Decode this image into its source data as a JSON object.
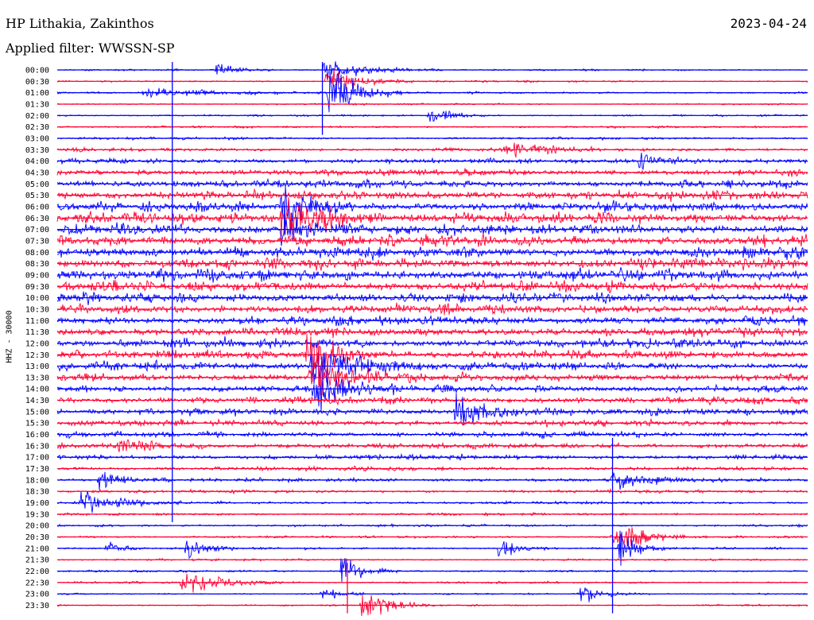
{
  "header": {
    "station": "HP Lithakia, Zakinthos",
    "filter": "Applied filter: WWSSN-SP",
    "date": "2023-04-24",
    "channel": "HHZ - 30000"
  },
  "chart_data": {
    "type": "line",
    "title": "HP Lithakia, Zakinthos",
    "subtitle": "Applied filter: WWSSN-SP",
    "ylabel": "HHZ - 30000",
    "xlabel": "",
    "date": "2023-04-24",
    "grid": false,
    "colors": {
      "even_rows": "#0000ff",
      "odd_rows": "#ff0033"
    },
    "rows": [
      {
        "label": "00:00",
        "noise": 0.6
      },
      {
        "label": "00:30",
        "noise": 0.6
      },
      {
        "label": "01:00",
        "noise": 0.7
      },
      {
        "label": "01:30",
        "noise": 0.6
      },
      {
        "label": "02:00",
        "noise": 0.7
      },
      {
        "label": "02:30",
        "noise": 0.7
      },
      {
        "label": "03:00",
        "noise": 0.9
      },
      {
        "label": "03:30",
        "noise": 1.3
      },
      {
        "label": "04:00",
        "noise": 1.8
      },
      {
        "label": "04:30",
        "noise": 2.3
      },
      {
        "label": "05:00",
        "noise": 2.8
      },
      {
        "label": "05:30",
        "noise": 3.2
      },
      {
        "label": "06:00",
        "noise": 3.5
      },
      {
        "label": "06:30",
        "noise": 3.8
      },
      {
        "label": "07:00",
        "noise": 4.0
      },
      {
        "label": "07:30",
        "noise": 4.0
      },
      {
        "label": "08:00",
        "noise": 4.0
      },
      {
        "label": "08:30",
        "noise": 4.0
      },
      {
        "label": "09:00",
        "noise": 4.0
      },
      {
        "label": "09:30",
        "noise": 3.9
      },
      {
        "label": "10:00",
        "noise": 3.8
      },
      {
        "label": "10:30",
        "noise": 3.6
      },
      {
        "label": "11:00",
        "noise": 3.4
      },
      {
        "label": "11:30",
        "noise": 3.2
      },
      {
        "label": "12:00",
        "noise": 3.2
      },
      {
        "label": "12:30",
        "noise": 3.1
      },
      {
        "label": "13:00",
        "noise": 3.0
      },
      {
        "label": "13:30",
        "noise": 2.9
      },
      {
        "label": "14:00",
        "noise": 2.8
      },
      {
        "label": "14:30",
        "noise": 2.6
      },
      {
        "label": "15:00",
        "noise": 2.4
      },
      {
        "label": "15:30",
        "noise": 2.2
      },
      {
        "label": "16:00",
        "noise": 2.1
      },
      {
        "label": "16:30",
        "noise": 2.0
      },
      {
        "label": "17:00",
        "noise": 1.8
      },
      {
        "label": "17:30",
        "noise": 1.5
      },
      {
        "label": "18:00",
        "noise": 1.3
      },
      {
        "label": "18:30",
        "noise": 1.1
      },
      {
        "label": "19:00",
        "noise": 1.0
      },
      {
        "label": "19:30",
        "noise": 0.9
      },
      {
        "label": "20:00",
        "noise": 0.9
      },
      {
        "label": "20:30",
        "noise": 0.8
      },
      {
        "label": "21:00",
        "noise": 0.8
      },
      {
        "label": "21:30",
        "noise": 0.7
      },
      {
        "label": "22:00",
        "noise": 0.7
      },
      {
        "label": "22:30",
        "noise": 0.7
      },
      {
        "label": "23:00",
        "noise": 0.6
      },
      {
        "label": "23:30",
        "noise": 0.6
      }
    ],
    "events": [
      {
        "row": 0,
        "minute": 6.3,
        "amp": 6,
        "dur": 0.8
      },
      {
        "row": 0,
        "minute": 10.6,
        "amp": 10,
        "dur": 1.6
      },
      {
        "row": 1,
        "minute": 10.7,
        "amp": 12,
        "dur": 1.2
      },
      {
        "row": 2,
        "minute": 3.4,
        "amp": 4,
        "dur": 3.0
      },
      {
        "row": 2,
        "minute": 10.8,
        "amp": 28,
        "dur": 1.0
      },
      {
        "row": 4,
        "minute": 14.7,
        "amp": 8,
        "dur": 0.8
      },
      {
        "row": 7,
        "minute": 17.8,
        "amp": 9,
        "dur": 1.2
      },
      {
        "row": 8,
        "minute": 23.2,
        "amp": 7,
        "dur": 1.0
      },
      {
        "row": 12,
        "minute": 8.9,
        "amp": 30,
        "dur": 1.0
      },
      {
        "row": 13,
        "minute": 8.9,
        "amp": 26,
        "dur": 1.4
      },
      {
        "row": 14,
        "minute": 8.8,
        "amp": 14,
        "dur": 1.2
      },
      {
        "row": 25,
        "minute": 9.9,
        "amp": 22,
        "dur": 1.2
      },
      {
        "row": 26,
        "minute": 10.1,
        "amp": 24,
        "dur": 1.6
      },
      {
        "row": 27,
        "minute": 10.0,
        "amp": 20,
        "dur": 1.4
      },
      {
        "row": 28,
        "minute": 10.2,
        "amp": 18,
        "dur": 1.2
      },
      {
        "row": 30,
        "minute": 15.8,
        "amp": 14,
        "dur": 1.6
      },
      {
        "row": 33,
        "minute": 2.4,
        "amp": 6,
        "dur": 1.2
      },
      {
        "row": 36,
        "minute": 1.6,
        "amp": 8,
        "dur": 1.0
      },
      {
        "row": 36,
        "minute": 22.1,
        "amp": 10,
        "dur": 1.2
      },
      {
        "row": 38,
        "minute": 0.9,
        "amp": 10,
        "dur": 1.2
      },
      {
        "row": 41,
        "minute": 22.1,
        "amp": 18,
        "dur": 1.0
      },
      {
        "row": 42,
        "minute": 1.9,
        "amp": 8,
        "dur": 0.6
      },
      {
        "row": 42,
        "minute": 5.1,
        "amp": 10,
        "dur": 0.8
      },
      {
        "row": 42,
        "minute": 17.6,
        "amp": 8,
        "dur": 0.8
      },
      {
        "row": 42,
        "minute": 22.4,
        "amp": 14,
        "dur": 0.8
      },
      {
        "row": 44,
        "minute": 11.3,
        "amp": 14,
        "dur": 0.8
      },
      {
        "row": 45,
        "minute": 4.9,
        "amp": 10,
        "dur": 1.6
      },
      {
        "row": 46,
        "minute": 10.5,
        "amp": 8,
        "dur": 0.6
      },
      {
        "row": 46,
        "minute": 20.8,
        "amp": 8,
        "dur": 1.0
      },
      {
        "row": 47,
        "minute": 12.1,
        "amp": 14,
        "dur": 1.0
      }
    ],
    "vertical_spikes": [
      {
        "minute": 4.6,
        "from_label": "00:00",
        "to_label": "19:30"
      },
      {
        "minute": 10.6,
        "from_label": "00:00",
        "to_label": "02:30"
      },
      {
        "minute": 11.6,
        "from_label": "22:00",
        "to_label": "23:30"
      },
      {
        "minute": 22.2,
        "from_label": "16:30",
        "to_label": "23:30"
      }
    ]
  }
}
